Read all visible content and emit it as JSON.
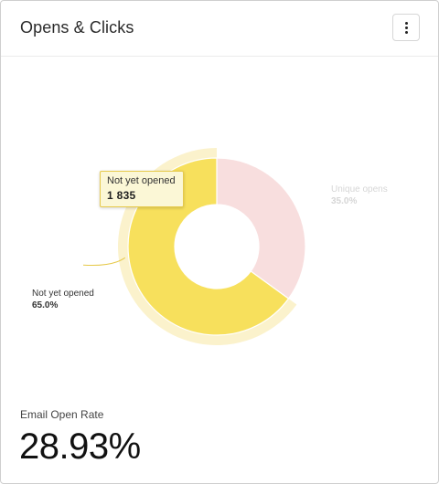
{
  "header": {
    "title": "Opens & Clicks",
    "menu_icon": "kebab-menu-icon"
  },
  "chart_data": {
    "type": "pie",
    "donut": true,
    "categories": [
      "Unique opens",
      "Not yet opened"
    ],
    "values": [
      35.0,
      65.0
    ],
    "labels": [
      "35.0%",
      "65.0%"
    ],
    "colors": [
      "#f8dede",
      "#f7e05c"
    ],
    "highlighted": "Not yet opened",
    "tooltip": {
      "label": "Not yet opened",
      "value": "1 835"
    }
  },
  "colors": {
    "highlight_halo": "#fbf2cc",
    "tooltip_bg": "#fbf7d6",
    "tooltip_border": "#e6c94a"
  },
  "metric": {
    "label": "Email Open Rate",
    "value": "28.93%"
  }
}
